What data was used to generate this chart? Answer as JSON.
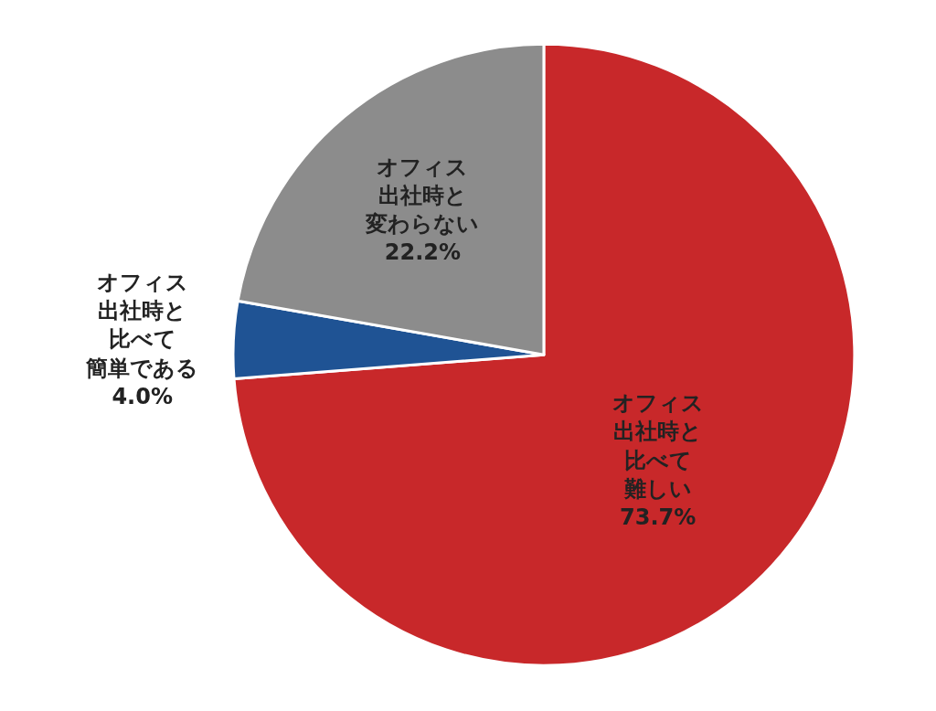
{
  "chart_data": {
    "type": "pie",
    "categories": [
      "オフィス出社時と比べて難しい",
      "オフィス出社時と比べて簡単である",
      "オフィス出社時と変わらない"
    ],
    "values": [
      73.7,
      4.0,
      22.2
    ],
    "value_labels": [
      "73.7%",
      "4.0%",
      "22.2%"
    ],
    "colors": [
      "#c8282a",
      "#1f5394",
      "#8c8c8c"
    ],
    "legend": false
  }
}
